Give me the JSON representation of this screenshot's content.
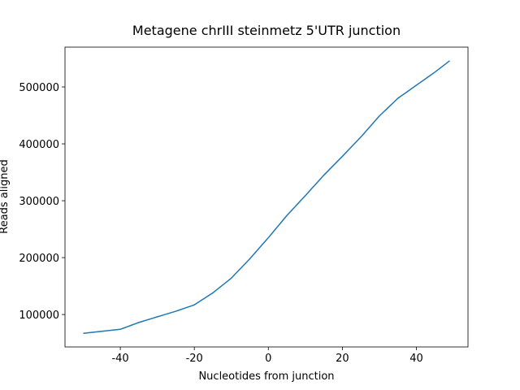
{
  "chart_data": {
    "type": "line",
    "title": "Metagene chrIII steinmetz 5'UTR junction",
    "xlabel": "Nucleotides from junction",
    "ylabel": "Reads aligned",
    "x": [
      -50,
      -49,
      -48,
      -47,
      -46,
      -45,
      -44,
      -43,
      -42,
      -41,
      -40,
      -39,
      -38,
      -37,
      -36,
      -35,
      -34,
      -33,
      -32,
      -31,
      -30,
      -29,
      -28,
      -27,
      -26,
      -25,
      -24,
      -23,
      -22,
      -21,
      -20,
      -19,
      -18,
      -17,
      -16,
      -15,
      -14,
      -13,
      -12,
      -11,
      -10,
      -9,
      -8,
      -7,
      -6,
      -5,
      -4,
      -3,
      -2,
      -1,
      0,
      1,
      2,
      3,
      4,
      5,
      6,
      7,
      8,
      9,
      10,
      11,
      12,
      13,
      14,
      15,
      16,
      17,
      18,
      19,
      20,
      21,
      22,
      23,
      24,
      25,
      26,
      27,
      28,
      29,
      30,
      31,
      32,
      33,
      34,
      35,
      36,
      37,
      38,
      39,
      40,
      41,
      42,
      43,
      44,
      45,
      46,
      47,
      48,
      49
    ],
    "series": [
      {
        "name": "Reads aligned",
        "color": "#1f77b4",
        "values": [
          67000,
          67700,
          68400,
          69100,
          69800,
          70500,
          71200,
          71900,
          72600,
          73300,
          74000,
          76400,
          78800,
          81200,
          83600,
          86000,
          88000,
          90000,
          92000,
          94000,
          96000,
          97900,
          99900,
          101800,
          103800,
          105700,
          108000,
          110200,
          112500,
          114700,
          117000,
          121200,
          125400,
          129600,
          133800,
          138000,
          143200,
          148400,
          153600,
          158800,
          164000,
          170800,
          177600,
          184400,
          191200,
          198000,
          205400,
          212800,
          220200,
          227600,
          235000,
          242800,
          250600,
          258400,
          266200,
          274000,
          281000,
          288000,
          295000,
          302000,
          309000,
          316200,
          323400,
          330600,
          337800,
          345000,
          351600,
          358200,
          364800,
          371400,
          378000,
          384800,
          391600,
          398400,
          405200,
          412000,
          419400,
          426800,
          434200,
          441600,
          449000,
          455200,
          461400,
          467600,
          473800,
          480000,
          484600,
          489200,
          493800,
          498400,
          503000,
          507600,
          512200,
          516800,
          521400,
          526000,
          531000,
          536000,
          541000,
          546000
        ]
      }
    ],
    "xlim": [
      -54.95,
      53.95
    ],
    "ylim": [
      43000,
      570000
    ],
    "xticks": [
      -40,
      -20,
      0,
      20,
      40
    ],
    "yticks": [
      100000,
      200000,
      300000,
      400000,
      500000
    ]
  }
}
